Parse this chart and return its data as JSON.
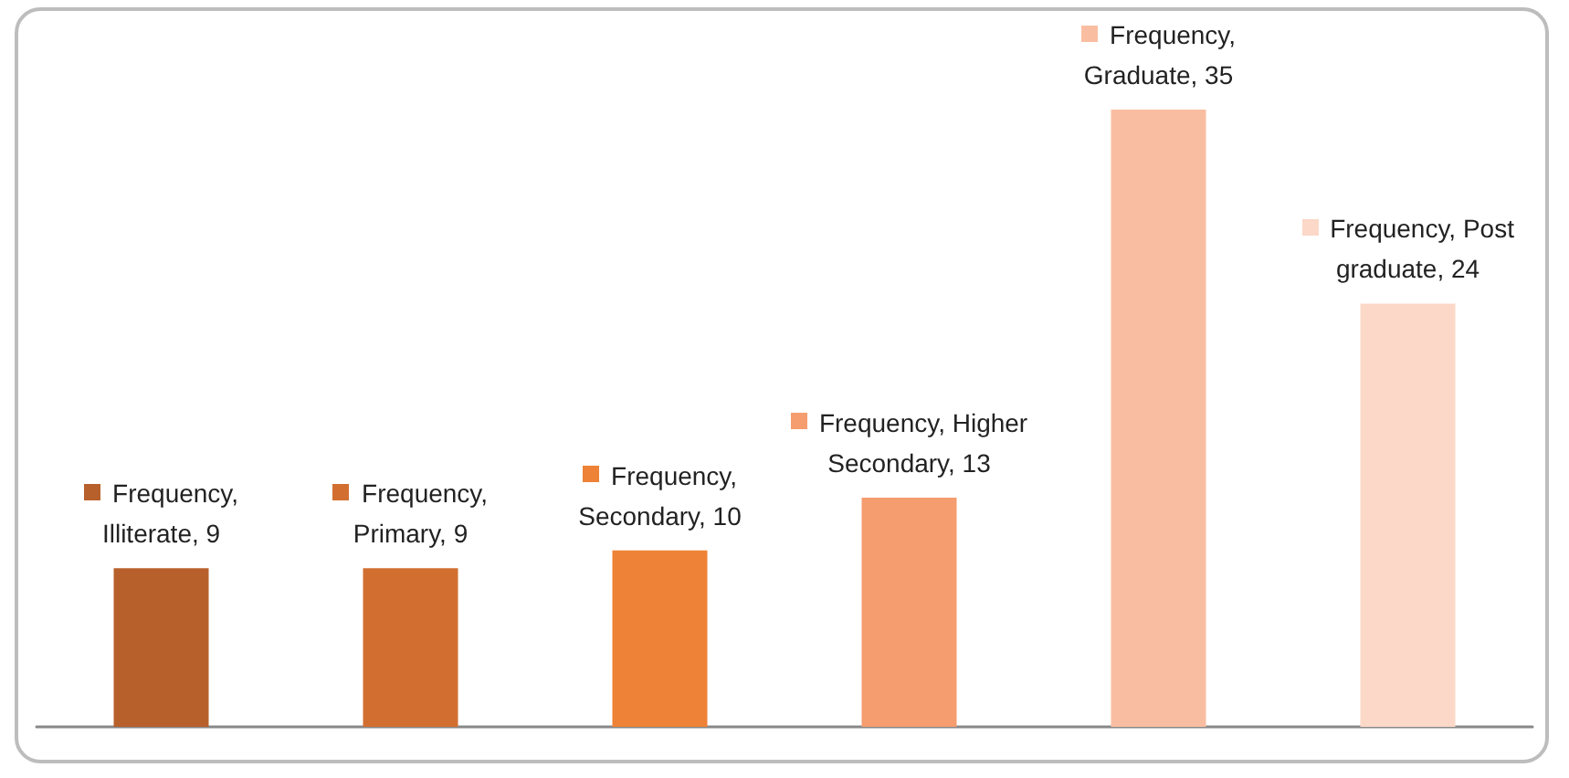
{
  "chart_data": {
    "type": "bar",
    "categories": [
      null,
      null,
      null,
      null,
      null,
      null
    ],
    "series": [
      {
        "values": [
          9,
          9,
          10,
          13,
          35,
          24
        ],
        "colors": [
          "#b8602b",
          "#d26f30",
          "#ee8236",
          "#f59d6f",
          "#f9bea1",
          "#fbd8c7"
        ],
        "value_labels": [
          "Frequency, Illiterate, 9",
          "Frequency, Primary, 9",
          "Frequency, Secondary, 10",
          "Frequency, Higher Secondary, 13",
          "Frequency, Graduate, 35",
          "Frequency, Post graduate, 24"
        ]
      }
    ],
    "tick_labels": false
  }
}
